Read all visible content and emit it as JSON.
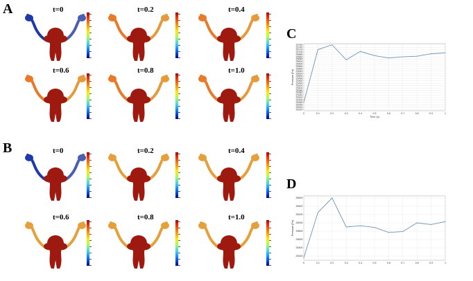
{
  "figure": {
    "panels": [
      {
        "label": "A",
        "thumbnails": [
          {
            "time_label": "t=0",
            "left_tube": "#1f3aa8",
            "right_tube": "#4a5fb3"
          },
          {
            "time_label": "t=0.2",
            "left_tube": "#e87a2a",
            "right_tube": "#e59a3c"
          },
          {
            "time_label": "t=0.4",
            "left_tube": "#e87a2a",
            "right_tube": "#e59a3c"
          },
          {
            "time_label": "t=0.6",
            "left_tube": "#e87a2a",
            "right_tube": "#e59a3c"
          },
          {
            "time_label": "t=0.8",
            "left_tube": "#e87a2a",
            "right_tube": "#e59a3c"
          },
          {
            "time_label": "t=1.0",
            "left_tube": "#e87a2a",
            "right_tube": "#e59a3c"
          }
        ]
      },
      {
        "label": "B",
        "thumbnails": [
          {
            "time_label": "t=0",
            "left_tube": "#1f3aa8",
            "right_tube": "#4a5fb3"
          },
          {
            "time_label": "t=0.2",
            "left_tube": "#e5a03c",
            "right_tube": "#e5a03c"
          },
          {
            "time_label": "t=0.4",
            "left_tube": "#e5a03c",
            "right_tube": "#e5a03c"
          },
          {
            "time_label": "t=0.6",
            "left_tube": "#e5a03c",
            "right_tube": "#e5a03c"
          },
          {
            "time_label": "t=0.8",
            "left_tube": "#e5a03c",
            "right_tube": "#e5a03c"
          },
          {
            "time_label": "t=1.0",
            "left_tube": "#e5a03c",
            "right_tube": "#e5a03c"
          }
        ]
      }
    ],
    "body_color": "#9e1a10",
    "colorbar_colors": [
      "#b30000",
      "#ff9900",
      "#ffee00",
      "#33ccff",
      "#000099"
    ]
  },
  "chart_data": [
    {
      "label": "C",
      "type": "line",
      "x": [
        0,
        0.1,
        0.2,
        0.3,
        0.4,
        0.5,
        0.6,
        0.7,
        0.8,
        0.9,
        1.0
      ],
      "series": [
        {
          "values": [
            25280,
            25720,
            25760,
            25635,
            25705,
            25670,
            25650,
            25660,
            25665,
            25685,
            25693
          ]
        }
      ],
      "xlim": [
        0,
        1
      ],
      "ylim": [
        25210,
        25770
      ],
      "xticks": [
        "0",
        "0.1",
        "0.2",
        "0.3",
        "0.4",
        "0.5",
        "0.6",
        "0.7",
        "0.8",
        "0.9",
        "1"
      ],
      "yticks": [
        "25760",
        "25740",
        "25720",
        "25700",
        "25680",
        "25660",
        "25640",
        "25620",
        "25600",
        "25580",
        "25560",
        "25540",
        "25520",
        "25500",
        "25480",
        "25460",
        "25440",
        "25420",
        "25400",
        "25380",
        "25360",
        "25340",
        "25320",
        "25300",
        "25280",
        "25260",
        "25240",
        "25220"
      ],
      "ytick_step_shown": 5,
      "xlabel": "Time (s)",
      "ylabel": "Pressure (Pa)",
      "grid": true,
      "line_color": "#6e93b8"
    },
    {
      "label": "D",
      "type": "line",
      "x": [
        0,
        0.1,
        0.2,
        0.3,
        0.4,
        0.5,
        0.6,
        0.7,
        0.8,
        0.9,
        1.0
      ],
      "series": [
        {
          "values": [
            25160,
            26250,
            26600,
            25900,
            25930,
            25890,
            25770,
            25790,
            26000,
            25960,
            26030
          ]
        }
      ],
      "xlim": [
        0,
        1
      ],
      "ylim": [
        25100,
        26650
      ],
      "xticks": [
        "0",
        "0.1",
        "0.2",
        "0.3",
        "0.4",
        "0.5",
        "0.6",
        "0.7",
        "0.8",
        "0.9",
        "1"
      ],
      "yticks": [
        "26600",
        "26400",
        "26200",
        "26000",
        "25800",
        "25600",
        "25400",
        "25200"
      ],
      "xlabel": "",
      "ylabel": "Pressure (Pa)",
      "grid": true,
      "line_color": "#6e93b8"
    }
  ]
}
